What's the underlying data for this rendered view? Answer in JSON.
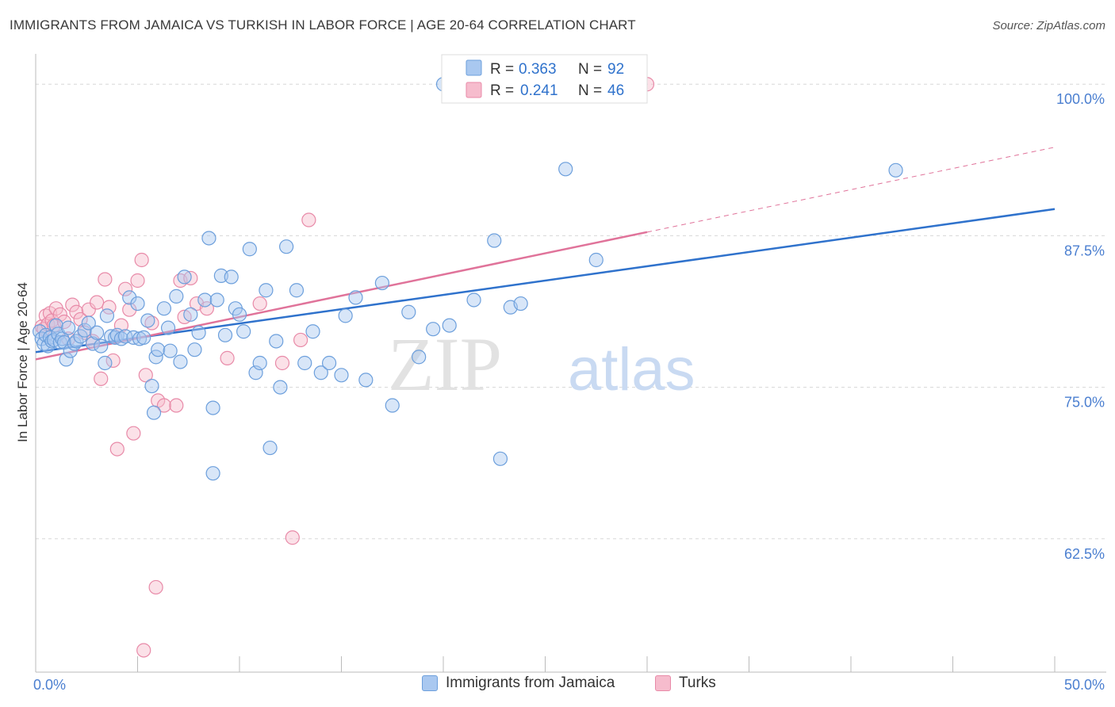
{
  "title": "IMMIGRANTS FROM JAMAICA VS TURKISH IN LABOR FORCE | AGE 20-64 CORRELATION CHART",
  "source": "Source: ZipAtlas.com",
  "watermark": {
    "zip": "ZIP",
    "atlas": "atlas"
  },
  "colors": {
    "blue_fill": "#a9c8f0",
    "blue_stroke": "#6c9fdc",
    "blue_line": "#2f72cc",
    "pink_fill": "#f6bccd",
    "pink_stroke": "#e88aa8",
    "pink_line": "#e0739a",
    "axis_label": "#4b7fd0",
    "grid": "#d8d8d8"
  },
  "legend_top": [
    {
      "series": "blue",
      "r_label": "R = ",
      "r_value": "0.363",
      "n_label": "N = ",
      "n_value": "92"
    },
    {
      "series": "pink",
      "r_label": "R = ",
      "r_value": "0.241",
      "n_label": "N = ",
      "n_value": "46"
    }
  ],
  "legend_bottom": [
    {
      "series": "blue",
      "label": "Immigrants from Jamaica"
    },
    {
      "series": "pink",
      "label": "Turks"
    }
  ],
  "chart_data": {
    "type": "scatter",
    "title": "IMMIGRANTS FROM JAMAICA VS TURKISH IN LABOR FORCE | AGE 20-64 CORRELATION CHART",
    "xlabel": "",
    "ylabel": "In Labor Force | Age 20-64",
    "xlim": [
      0,
      50
    ],
    "ylim": [
      51.5,
      102.5
    ],
    "x_tick_labels": [
      {
        "value": 0,
        "label": "0.0%"
      },
      {
        "value": 50,
        "label": "50.0%"
      }
    ],
    "x_minor_ticks": [
      5,
      10,
      15,
      20,
      25,
      30,
      35,
      40,
      45,
      50
    ],
    "y_ticks": [
      {
        "value": 100,
        "label": "100.0%"
      },
      {
        "value": 87.5,
        "label": "87.5%"
      },
      {
        "value": 75,
        "label": "75.0%"
      },
      {
        "value": 62.5,
        "label": "62.5%"
      }
    ],
    "grid": true,
    "series": [
      {
        "name": "Immigrants from Jamaica",
        "color": "blue",
        "trend": {
          "x": [
            0,
            50
          ],
          "y": [
            77.9,
            89.7
          ]
        },
        "points": [
          [
            0.2,
            79.6
          ],
          [
            0.3,
            79.0
          ],
          [
            0.4,
            78.6
          ],
          [
            0.5,
            79.3
          ],
          [
            0.6,
            78.4
          ],
          [
            0.7,
            79.1
          ],
          [
            0.8,
            78.8
          ],
          [
            0.9,
            78.9
          ],
          [
            1.0,
            80.1
          ],
          [
            1.1,
            79.4
          ],
          [
            1.2,
            78.7
          ],
          [
            1.3,
            79.0
          ],
          [
            1.4,
            78.7
          ],
          [
            1.5,
            77.3
          ],
          [
            1.6,
            79.9
          ],
          [
            1.7,
            78.0
          ],
          [
            1.9,
            78.6
          ],
          [
            2.0,
            78.8
          ],
          [
            2.2,
            79.2
          ],
          [
            2.4,
            79.7
          ],
          [
            2.6,
            80.3
          ],
          [
            2.8,
            78.6
          ],
          [
            3.0,
            79.5
          ],
          [
            3.2,
            78.4
          ],
          [
            3.4,
            77.0
          ],
          [
            3.5,
            80.9
          ],
          [
            3.7,
            79.2
          ],
          [
            3.9,
            79.1
          ],
          [
            4.0,
            79.3
          ],
          [
            4.2,
            79.0
          ],
          [
            4.4,
            79.2
          ],
          [
            4.6,
            82.4
          ],
          [
            4.8,
            79.1
          ],
          [
            5.0,
            81.9
          ],
          [
            5.1,
            79.0
          ],
          [
            5.3,
            79.1
          ],
          [
            5.5,
            80.5
          ],
          [
            5.7,
            75.1
          ],
          [
            5.8,
            72.9
          ],
          [
            5.9,
            77.5
          ],
          [
            6.0,
            78.1
          ],
          [
            6.3,
            81.5
          ],
          [
            6.5,
            79.9
          ],
          [
            6.6,
            78.0
          ],
          [
            6.9,
            82.5
          ],
          [
            7.1,
            77.1
          ],
          [
            7.3,
            84.1
          ],
          [
            7.6,
            81.0
          ],
          [
            7.8,
            78.1
          ],
          [
            8.0,
            79.5
          ],
          [
            8.3,
            82.2
          ],
          [
            8.5,
            87.3
          ],
          [
            8.7,
            73.3
          ],
          [
            8.9,
            82.2
          ],
          [
            9.1,
            84.2
          ],
          [
            9.3,
            79.3
          ],
          [
            9.6,
            84.1
          ],
          [
            9.8,
            81.5
          ],
          [
            10.0,
            81.0
          ],
          [
            10.2,
            79.6
          ],
          [
            10.5,
            86.4
          ],
          [
            10.8,
            76.2
          ],
          [
            11.0,
            77.0
          ],
          [
            11.3,
            83.0
          ],
          [
            11.5,
            70.0
          ],
          [
            11.8,
            78.8
          ],
          [
            12.0,
            75.0
          ],
          [
            12.3,
            86.6
          ],
          [
            12.8,
            83.0
          ],
          [
            13.2,
            77.0
          ],
          [
            13.6,
            79.6
          ],
          [
            14.0,
            76.2
          ],
          [
            14.4,
            77.0
          ],
          [
            15.0,
            76.0
          ],
          [
            15.2,
            80.9
          ],
          [
            15.7,
            82.4
          ],
          [
            16.2,
            75.6
          ],
          [
            17.0,
            83.6
          ],
          [
            17.5,
            73.5
          ],
          [
            18.3,
            81.2
          ],
          [
            18.8,
            77.5
          ],
          [
            19.5,
            79.8
          ],
          [
            20.3,
            80.1
          ],
          [
            21.5,
            82.2
          ],
          [
            22.5,
            87.1
          ],
          [
            22.8,
            69.1
          ],
          [
            23.3,
            81.6
          ],
          [
            23.8,
            81.9
          ],
          [
            26.0,
            93.0
          ],
          [
            27.5,
            85.5
          ],
          [
            42.2,
            92.9
          ],
          [
            8.7,
            67.9
          ]
        ]
      },
      {
        "name": "Turks",
        "color": "pink",
        "trend": {
          "x": [
            0,
            30
          ],
          "y": [
            77.3,
            87.8
          ]
        },
        "trend_ext": {
          "x": [
            30,
            50
          ],
          "y": [
            87.8,
            94.8
          ]
        },
        "points": [
          [
            0.3,
            80.0
          ],
          [
            0.4,
            79.8
          ],
          [
            0.5,
            80.9
          ],
          [
            0.6,
            80.2
          ],
          [
            0.7,
            81.1
          ],
          [
            0.8,
            80.5
          ],
          [
            0.9,
            80.1
          ],
          [
            1.0,
            81.5
          ],
          [
            1.2,
            81.0
          ],
          [
            1.4,
            80.4
          ],
          [
            1.6,
            79.0
          ],
          [
            1.8,
            81.8
          ],
          [
            2.0,
            81.2
          ],
          [
            2.2,
            80.6
          ],
          [
            2.4,
            79.5
          ],
          [
            2.6,
            81.4
          ],
          [
            2.8,
            78.8
          ],
          [
            3.0,
            82.0
          ],
          [
            3.2,
            75.7
          ],
          [
            3.4,
            83.9
          ],
          [
            3.6,
            81.6
          ],
          [
            3.8,
            77.2
          ],
          [
            4.0,
            69.9
          ],
          [
            4.2,
            80.1
          ],
          [
            4.4,
            83.1
          ],
          [
            4.6,
            81.4
          ],
          [
            4.8,
            71.2
          ],
          [
            5.0,
            83.8
          ],
          [
            5.2,
            85.5
          ],
          [
            5.4,
            76.0
          ],
          [
            5.7,
            80.3
          ],
          [
            5.9,
            58.5
          ],
          [
            6.0,
            73.9
          ],
          [
            6.3,
            73.5
          ],
          [
            6.9,
            73.5
          ],
          [
            7.1,
            83.8
          ],
          [
            7.3,
            80.8
          ],
          [
            7.6,
            84.0
          ],
          [
            7.9,
            81.9
          ],
          [
            8.4,
            81.5
          ],
          [
            9.4,
            77.4
          ],
          [
            11.0,
            81.9
          ],
          [
            12.1,
            77.0
          ],
          [
            12.6,
            62.6
          ],
          [
            13.0,
            78.9
          ],
          [
            13.4,
            88.8
          ]
        ],
        "extra_points": [
          [
            5.3,
            53.3
          ],
          [
            30.0,
            100.0
          ]
        ]
      }
    ],
    "extra_blue_points": [
      [
        20.0,
        100.0
      ]
    ]
  }
}
